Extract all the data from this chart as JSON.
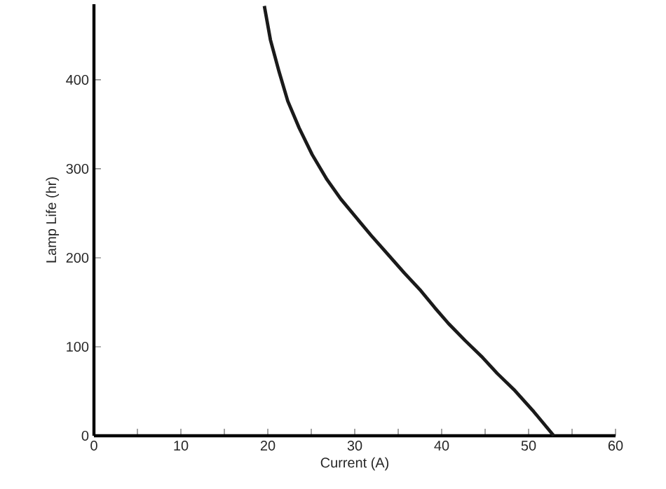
{
  "chart_data": {
    "type": "line",
    "xlabel": "Current (A)",
    "ylabel": "Lamp Life (hr)",
    "xlim": [
      0,
      60
    ],
    "ylim": [
      0,
      485
    ],
    "xticks": [
      0,
      {
        "value": 5,
        "label": null
      },
      10,
      {
        "value": 15,
        "label": null
      },
      20,
      {
        "value": 25,
        "label": null
      },
      30,
      {
        "value": 35,
        "label": null
      },
      40,
      {
        "value": 45,
        "label": null
      },
      50,
      {
        "value": 55,
        "label": null
      },
      60
    ],
    "yticks": [
      0,
      100,
      200,
      300,
      400
    ],
    "grid": false,
    "marker": "none",
    "line_style": "solid",
    "series": [
      {
        "color": "#1a1a1a",
        "x": [
          19.6,
          20.3,
          21.3,
          22.3,
          23.6,
          25.1,
          26.8,
          28.4,
          30.1,
          31.9,
          33.8,
          35.7,
          37.6,
          39.2,
          40.8,
          42.7,
          44.6,
          46.4,
          48.3,
          50.6,
          52.9
        ],
        "values": [
          483,
          445,
          409,
          376,
          346,
          316,
          288,
          266,
          246,
          225,
          204,
          183,
          163,
          144,
          126,
          107,
          89,
          70,
          52,
          27,
          0
        ]
      }
    ]
  }
}
